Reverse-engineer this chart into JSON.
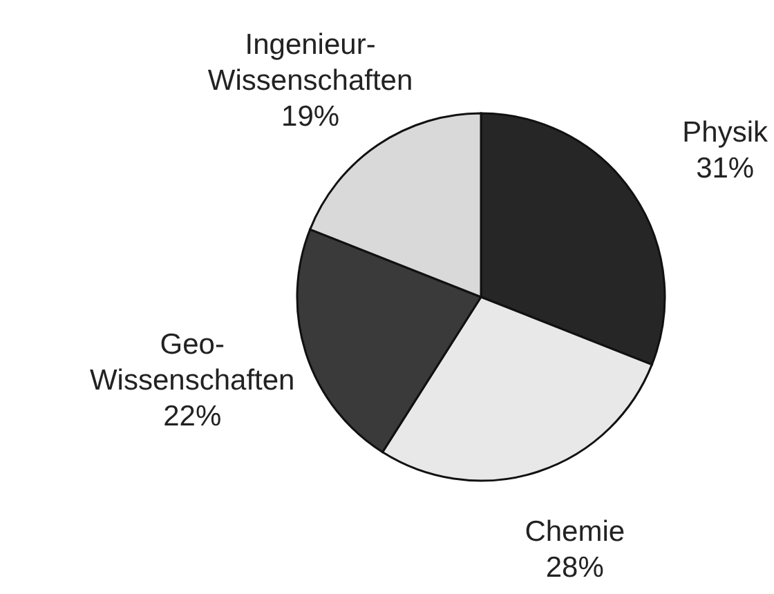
{
  "chart_data": {
    "type": "pie",
    "categories": [
      "Physik",
      "Chemie",
      "Geo-\nWissenschaften",
      "Ingenieur-\nWissenschaften"
    ],
    "values": [
      31,
      28,
      22,
      19
    ],
    "value_labels": [
      "31%",
      "28%",
      "22%",
      "19%"
    ],
    "colors": [
      "#262626",
      "#e8e8e8",
      "#3a3a3a",
      "#d9d9d9"
    ]
  }
}
